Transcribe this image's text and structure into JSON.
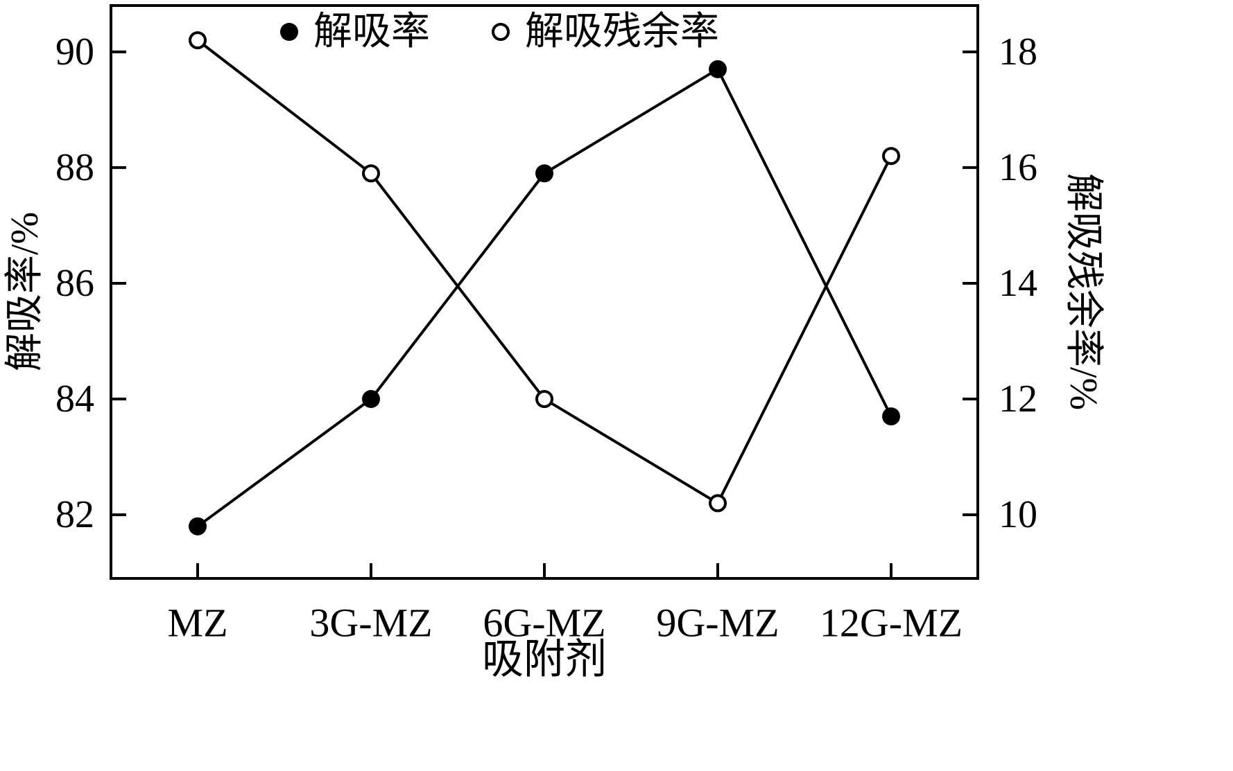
{
  "chart_data": {
    "type": "line",
    "title": "",
    "xlabel": "吸附剂",
    "ylabel_left": "解吸率/%",
    "ylabel_right": "解吸残余率/%",
    "categories": [
      "MZ",
      "3G-MZ",
      "6G-MZ",
      "9G-MZ",
      "12G-MZ"
    ],
    "series": [
      {
        "name": "解吸率",
        "axis": "left",
        "marker": "filled-circle",
        "values": [
          81.8,
          84.0,
          87.9,
          89.7,
          83.7
        ]
      },
      {
        "name": "解吸残余率",
        "axis": "right",
        "marker": "open-circle",
        "values": [
          18.2,
          15.9,
          12.0,
          10.2,
          16.2
        ]
      }
    ],
    "left_axis": {
      "min": 80.9,
      "max": 90.8,
      "ticks": [
        82,
        84,
        86,
        88,
        90
      ]
    },
    "right_axis": {
      "min": 8.9,
      "max": 18.8,
      "ticks": [
        10,
        12,
        14,
        16,
        18
      ]
    },
    "legend_position": "top",
    "grid": false,
    "colors": {
      "line": "#000000",
      "background": "#ffffff",
      "marker_fill": "#000000",
      "open_marker_fill": "#ffffff"
    }
  }
}
